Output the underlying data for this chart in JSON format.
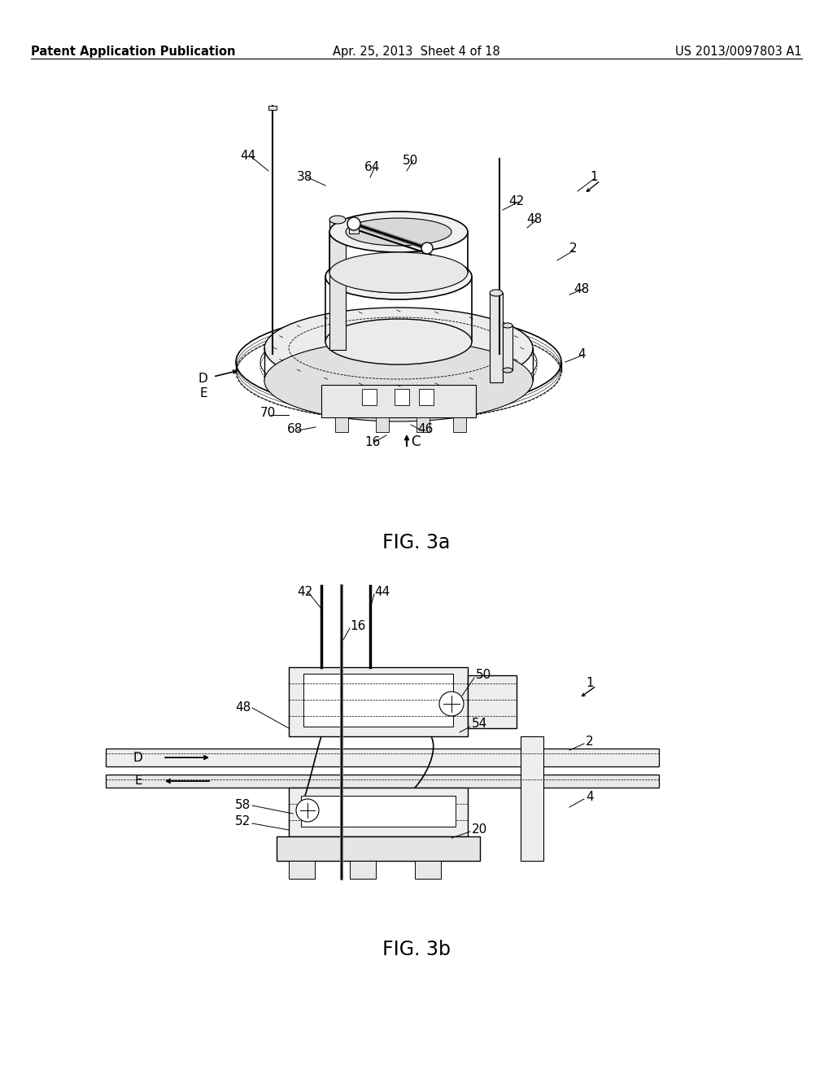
{
  "bg_color": "#ffffff",
  "header_left": "Patent Application Publication",
  "header_center": "Apr. 25, 2013  Sheet 4 of 18",
  "header_right": "US 2013/0097803 A1",
  "fig3a_caption": "FIG. 3a",
  "fig3b_caption": "FIG. 3b",
  "header_fontsize": 10.5,
  "caption_fontsize": 17,
  "label_fontsize": 11
}
